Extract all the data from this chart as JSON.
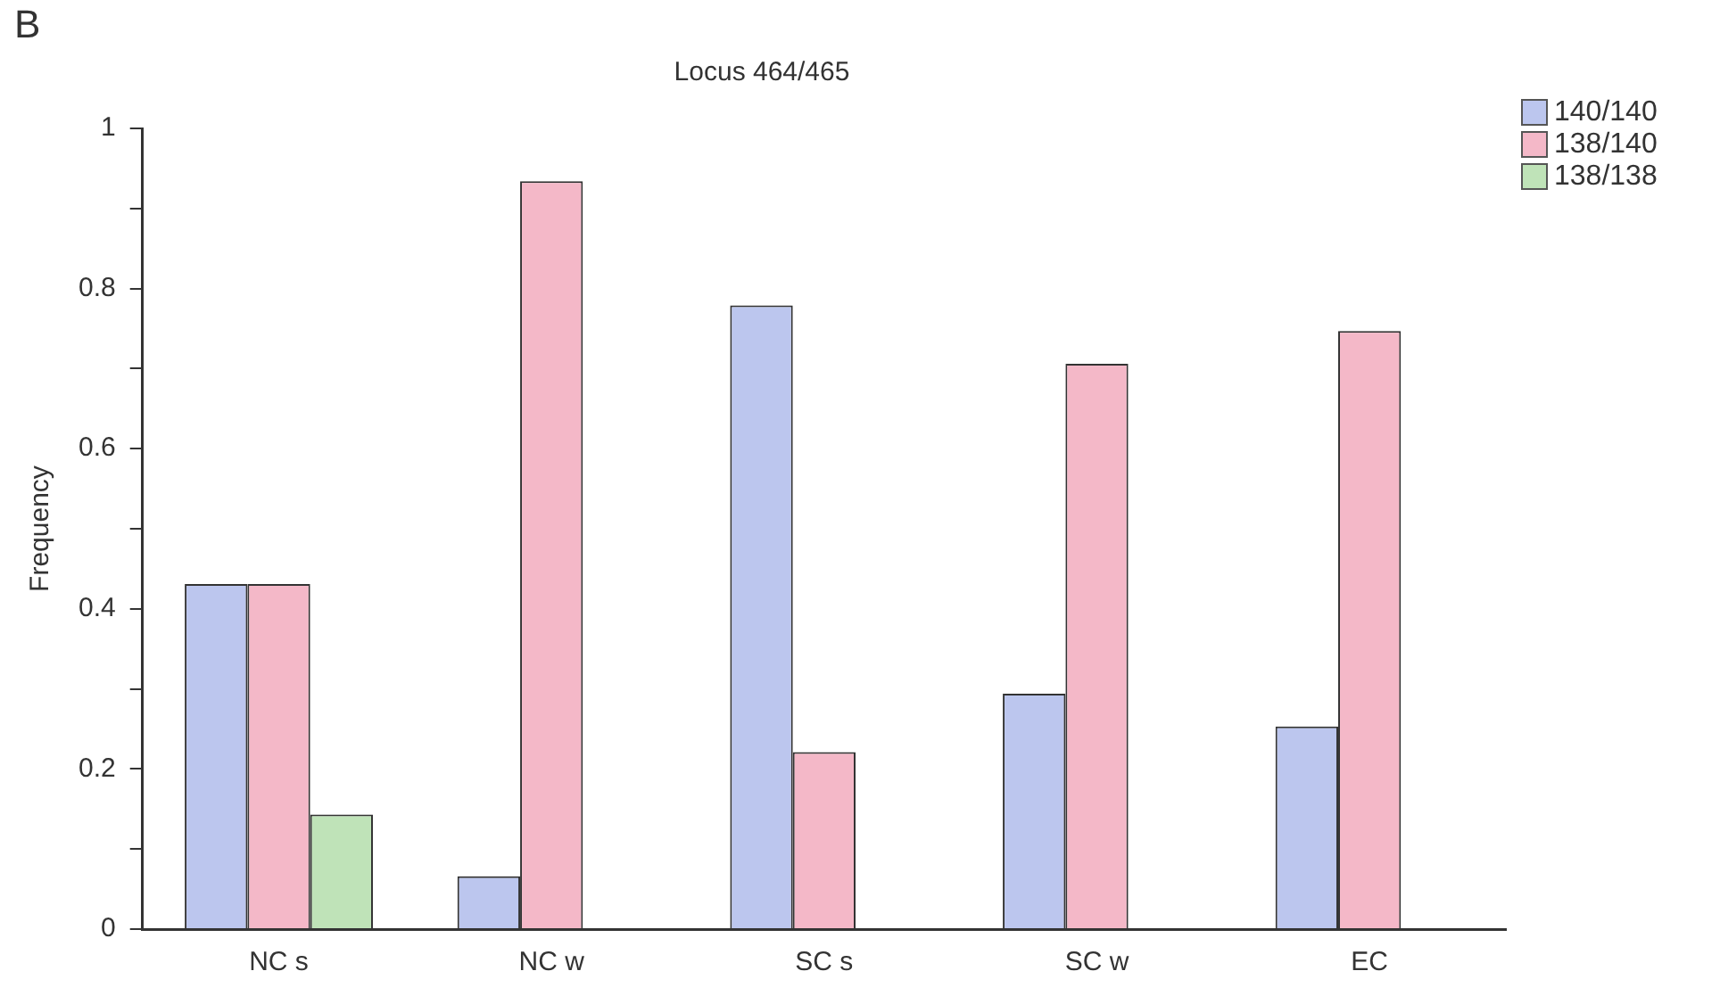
{
  "chart_data": {
    "type": "bar",
    "title": "Locus 464/465",
    "ylabel": "Frequency",
    "annotations": [
      "B"
    ],
    "categories": [
      "NC s",
      "NC w",
      "SC s",
      "SC w",
      "EC"
    ],
    "series": [
      {
        "name": "140/140",
        "color": "#bcc6ee",
        "values": [
          0.431,
          0.066,
          0.779,
          0.294,
          0.253
        ]
      },
      {
        "name": "138/140",
        "color": "#f4b8c8",
        "values": [
          0.431,
          0.934,
          0.221,
          0.706,
          0.747
        ]
      },
      {
        "name": "138/138",
        "color": "#bfe3b8",
        "values": [
          0.143,
          null,
          null,
          null,
          null
        ]
      }
    ],
    "ylim": [
      0,
      1
    ],
    "yticks": [
      0,
      {
        "value": 0.1,
        "label": null
      },
      0.2,
      {
        "value": 0.3,
        "label": null
      },
      0.4,
      {
        "value": 0.5,
        "label": null
      },
      0.6,
      {
        "value": 0.7,
        "label": null
      },
      0.8,
      {
        "value": 0.9,
        "label": null
      },
      1
    ],
    "grid": false,
    "legend": "top right"
  }
}
